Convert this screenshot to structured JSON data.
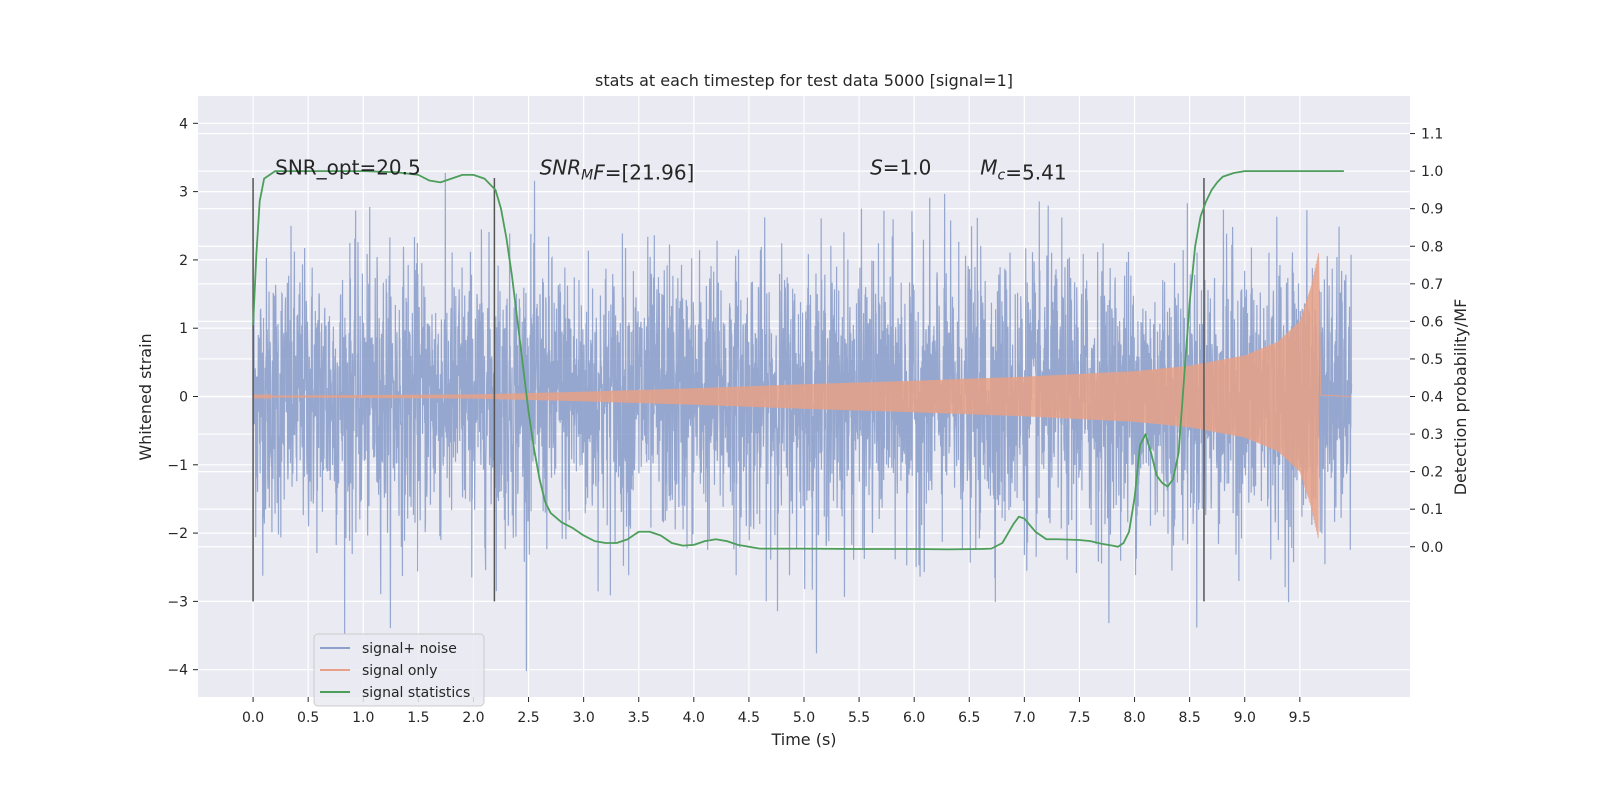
{
  "chart_data": {
    "type": "line",
    "title": "stats at each timestep for test data 5000 [signal=1]",
    "xlabel": "Time (s)",
    "ylabel": "Whitened strain",
    "ylabel_right": "Detection probability/MF",
    "xlim": [
      -0.5,
      10.5
    ],
    "ylim": [
      -4.4,
      4.4
    ],
    "ylim_right": [
      -0.4,
      1.2
    ],
    "x_ticks": [
      "0.0",
      "0.5",
      "1.0",
      "1.5",
      "2.0",
      "2.5",
      "3.0",
      "3.5",
      "4.0",
      "4.5",
      "5.0",
      "5.5",
      "6.0",
      "6.5",
      "7.0",
      "7.5",
      "8.0",
      "8.5",
      "9.0",
      "9.5"
    ],
    "x_tick_values": [
      0,
      0.5,
      1,
      1.5,
      2,
      2.5,
      3,
      3.5,
      4,
      4.5,
      5,
      5.5,
      6,
      6.5,
      7,
      7.5,
      8,
      8.5,
      9,
      9.5
    ],
    "y_ticks": [
      "4",
      "3",
      "2",
      "1",
      "0",
      "−1",
      "−2",
      "−3",
      "−4"
    ],
    "y_tick_values": [
      4,
      3,
      2,
      1,
      0,
      -1,
      -2,
      -3,
      -4
    ],
    "y_right_ticks": [
      "1.1",
      "1.0",
      "0.9",
      "0.8",
      "0.7",
      "0.6",
      "0.5",
      "0.4",
      "0.3",
      "0.2",
      "0.1",
      "0.0"
    ],
    "y_right_tick_values": [
      1.1,
      1.0,
      0.9,
      0.8,
      0.7,
      0.6,
      0.5,
      0.4,
      0.3,
      0.2,
      0.1,
      0.0
    ],
    "grid": true,
    "legend_position": "bottom-left",
    "series": [
      {
        "name": "signal+ noise",
        "color": "#8da0cb",
        "axis": "left",
        "style": "noise",
        "x_range": [
          0,
          9.97
        ],
        "amplitude": 1.0
      },
      {
        "name": "signal only",
        "color": "#e8a186",
        "axis": "left",
        "style": "chirp",
        "x_range": [
          0,
          9.67
        ],
        "envelope": {
          "x": [
            0,
            2,
            3,
            4,
            5,
            6,
            7,
            8,
            8.5,
            9,
            9.3,
            9.5,
            9.6,
            9.67
          ],
          "y": [
            0.01,
            0.03,
            0.07,
            0.12,
            0.18,
            0.23,
            0.29,
            0.37,
            0.45,
            0.6,
            0.8,
            1.1,
            1.6,
            2.1
          ]
        }
      },
      {
        "name": "signal statistics",
        "color": "#4c9e5a",
        "axis": "right",
        "x": [
          0,
          0.03,
          0.06,
          0.1,
          0.15,
          0.2,
          0.3,
          0.5,
          1.0,
          1.3,
          1.5,
          1.6,
          1.7,
          1.8,
          1.9,
          2.0,
          2.1,
          2.2,
          2.25,
          2.3,
          2.35,
          2.4,
          2.45,
          2.5,
          2.55,
          2.6,
          2.65,
          2.7,
          2.8,
          2.9,
          3.0,
          3.1,
          3.2,
          3.3,
          3.4,
          3.5,
          3.6,
          3.7,
          3.8,
          3.9,
          4.0,
          4.1,
          4.2,
          4.3,
          4.4,
          4.5,
          4.6,
          4.7,
          5.0,
          5.5,
          6.0,
          6.3,
          6.6,
          6.7,
          6.8,
          6.9,
          6.95,
          7.0,
          7.1,
          7.2,
          7.3,
          7.5,
          7.6,
          7.7,
          7.8,
          7.85,
          7.9,
          7.95,
          8.0,
          8.05,
          8.1,
          8.15,
          8.2,
          8.25,
          8.3,
          8.35,
          8.4,
          8.45,
          8.5,
          8.55,
          8.6,
          8.65,
          8.7,
          8.75,
          8.8,
          8.9,
          9.0,
          9.1,
          9.3,
          9.6,
          9.9
        ],
        "y": [
          0.59,
          0.78,
          0.92,
          0.98,
          0.99,
          1.0,
          1.0,
          1.0,
          1.0,
          0.997,
          0.99,
          0.975,
          0.97,
          0.98,
          0.99,
          0.99,
          0.98,
          0.95,
          0.9,
          0.82,
          0.72,
          0.6,
          0.48,
          0.36,
          0.26,
          0.18,
          0.12,
          0.09,
          0.065,
          0.05,
          0.03,
          0.015,
          0.01,
          0.01,
          0.02,
          0.04,
          0.04,
          0.03,
          0.01,
          0.003,
          0.005,
          0.015,
          0.02,
          0.015,
          0.005,
          0.0,
          -0.005,
          -0.005,
          -0.005,
          -0.006,
          -0.006,
          -0.007,
          -0.006,
          -0.005,
          0.01,
          0.06,
          0.08,
          0.075,
          0.04,
          0.02,
          0.02,
          0.018,
          0.015,
          0.008,
          0.003,
          0.0,
          0.01,
          0.04,
          0.13,
          0.27,
          0.3,
          0.25,
          0.19,
          0.17,
          0.16,
          0.18,
          0.25,
          0.45,
          0.65,
          0.8,
          0.88,
          0.92,
          0.95,
          0.97,
          0.985,
          0.995,
          1.0,
          1.0,
          1.0,
          1.0,
          1.0
        ]
      }
    ],
    "vlines": [
      0,
      2.19,
      8.63
    ],
    "vline_range": [
      -3.0,
      3.2
    ],
    "annotations": [
      {
        "text": "SNR_opt=20.5",
        "x": 0.2,
        "y": 3.25
      },
      {
        "segments": [
          {
            "t": "SNR",
            "it": true
          },
          {
            "t": "M",
            "it": true,
            "sub": true
          },
          {
            "t": "F",
            "it": true
          },
          {
            "t": "=[21.96]",
            "it": false
          }
        ],
        "x": 2.6,
        "y": 3.25
      },
      {
        "segments": [
          {
            "t": "S",
            "it": true
          },
          {
            "t": "=1.0",
            "it": false
          }
        ],
        "x": 5.6,
        "y": 3.25
      },
      {
        "segments": [
          {
            "t": "M",
            "it": true
          },
          {
            "t": "c",
            "it": true,
            "sub": true
          },
          {
            "t": "=5.41",
            "it": false
          }
        ],
        "x": 6.6,
        "y": 3.25
      }
    ]
  }
}
